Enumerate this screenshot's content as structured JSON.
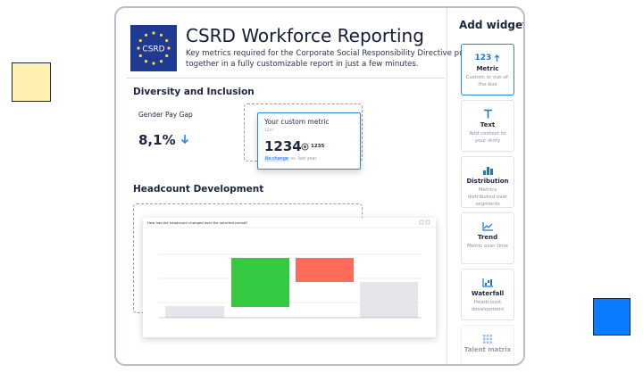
{
  "header": {
    "badge": "CSRD",
    "title": "CSRD Workforce Reporting",
    "description_lines": [
      "Key metrics required for the Corporate Social Responsibility Directive put",
      "together in a fully customizable report in just a few minutes."
    ]
  },
  "sections": [
    {
      "title": "Diversity and Inclusion",
      "metric": {
        "label": "Gender Pay Gap",
        "value": "8,1%"
      },
      "custom_metric": {
        "title": "Your custom metric",
        "period": "12m",
        "value": "1234",
        "comparison": "1235",
        "change": "No change",
        "change_context": "vs. last year"
      }
    },
    {
      "title": "Headcount Development",
      "chart_question": "How has the headcount changed over the selected period?"
    }
  ],
  "sidebar": {
    "title": "Add widget",
    "widgets": [
      {
        "icon": "123",
        "name": "Metric",
        "description": "Custom or out-of-the-box"
      },
      {
        "name": "Text",
        "description": "Add context to your story"
      },
      {
        "name": "Distribution",
        "description": "Metrics distributed over segments"
      },
      {
        "name": "Trend",
        "description": "Metric over time"
      },
      {
        "name": "Waterfall",
        "description": "Headcount development"
      },
      {
        "name": "Talent matrix"
      }
    ]
  }
}
